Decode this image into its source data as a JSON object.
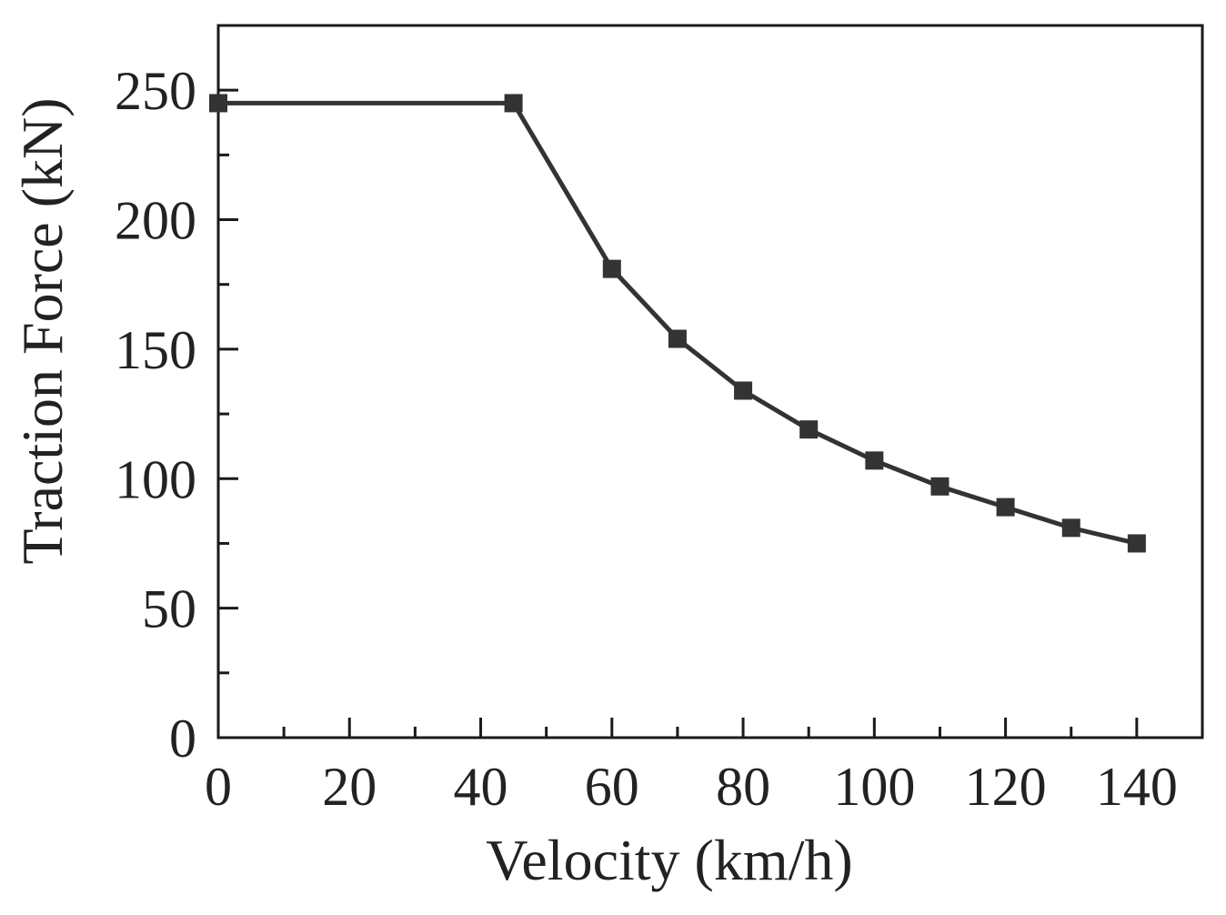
{
  "chart_data": {
    "type": "line",
    "title": "",
    "xlabel": "Velocity (km/h)",
    "ylabel": "Traction Force (kN)",
    "xlim": [
      0,
      150
    ],
    "ylim": [
      0,
      275
    ],
    "x_ticks": [
      0,
      20,
      40,
      60,
      80,
      100,
      120,
      140
    ],
    "x_tick_labels": [
      "0",
      "20",
      "40",
      "60",
      "80",
      "100",
      "120",
      "140"
    ],
    "x_minor_ticks": [
      10,
      30,
      50,
      70,
      90,
      110,
      130
    ],
    "y_ticks": [
      0,
      50,
      100,
      150,
      200,
      250
    ],
    "y_tick_labels": [
      "0",
      "50",
      "100",
      "150",
      "200",
      "250"
    ],
    "y_minor_ticks": [
      25,
      75,
      125,
      175,
      225
    ],
    "grid": false,
    "legend": "none",
    "series": [
      {
        "name": "Traction Force",
        "marker": "square",
        "x": [
          0,
          45,
          60,
          70,
          80,
          90,
          100,
          110,
          120,
          130,
          140
        ],
        "values": [
          245,
          245,
          181,
          154,
          134,
          119,
          107,
          97,
          89,
          81,
          75
        ]
      }
    ]
  },
  "colors": {
    "series": "#333333",
    "axis": "#1a1a1a",
    "text": "#222222"
  }
}
